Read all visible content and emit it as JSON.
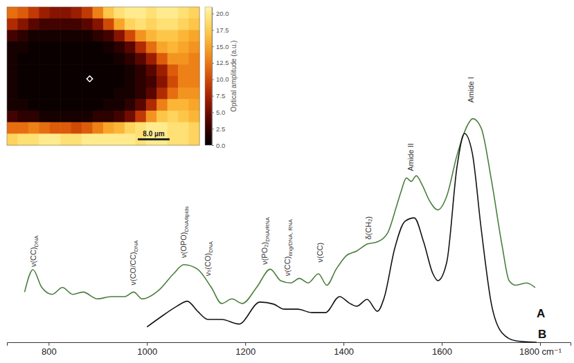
{
  "chart_data": [
    {
      "type": "line",
      "xlim": [
        715,
        1862
      ],
      "xticks": [
        800,
        1000,
        1200,
        1400,
        1600,
        {
          "value": 1800,
          "label": "1800 cm⁻¹"
        }
      ],
      "ylim": [
        0,
        100
      ],
      "grid": false,
      "tick_labels": "x",
      "series": [
        {
          "name": "A",
          "color": "#4a7d3c",
          "x": [
            751,
            768,
            786,
            807,
            828,
            849,
            870,
            899,
            927,
            955,
            973,
            990,
            1025,
            1054,
            1075,
            1103,
            1131,
            1152,
            1173,
            1194,
            1223,
            1251,
            1272,
            1293,
            1310,
            1328,
            1349,
            1366,
            1385,
            1406,
            1427,
            1448,
            1469,
            1490,
            1507,
            1517,
            1528,
            1538,
            1548,
            1560,
            1575,
            1592,
            1610,
            1631,
            1652,
            1663,
            1680,
            1701,
            1723,
            1737,
            1751,
            1772,
            1790
          ],
          "values": [
            22,
            31.8,
            24,
            21,
            24,
            21,
            22,
            19,
            20,
            20,
            22,
            19,
            23,
            30,
            34,
            32,
            24,
            17,
            19,
            17,
            24,
            32,
            27,
            26,
            28,
            26,
            30,
            25,
            32,
            38,
            40,
            43,
            44,
            48,
            59,
            66,
            72,
            70.5,
            73,
            69,
            62,
            58,
            64,
            82,
            95,
            98,
            94,
            71,
            42,
            27,
            25,
            26,
            24
          ]
        },
        {
          "name": "B",
          "color": "#111111",
          "x": [
            1000,
            1025,
            1061,
            1082,
            1103,
            1124,
            1152,
            1187,
            1230,
            1258,
            1279,
            1307,
            1335,
            1363,
            1392,
            1413,
            1427,
            1448,
            1469,
            1483,
            1504,
            1525,
            1544,
            1563,
            1582,
            1592,
            1610,
            1631,
            1646,
            1662,
            1680,
            1701,
            1723,
            1751,
            1793
          ],
          "values": [
            6.7,
            10.6,
            15.8,
            18,
            13.6,
            10,
            10,
            8,
            17.6,
            16.7,
            14.5,
            14.5,
            13,
            13,
            20,
            17,
            15.8,
            18.8,
            13.6,
            19.7,
            41,
            53,
            54.5,
            44,
            30,
            27,
            35,
            77,
            91.5,
            83,
            50,
            16.7,
            4,
            0.6,
            0
          ]
        }
      ],
      "annotations": [
        {
          "text": "ν(CC)",
          "subscript": "DNA",
          "x": 769,
          "y": 33
        },
        {
          "text": "ν(CO/CC)",
          "subscript": "DNA",
          "x": 972,
          "y": 25
        },
        {
          "text": "ν(OPO)",
          "subscript": "DNA/lipids",
          "x": 1075,
          "y": 37
        },
        {
          "text": "νₛ(CO)",
          "subscript": "DNA",
          "x": 1124,
          "y": 29
        },
        {
          "text": "ν(PO₂)",
          "subscript": "DNA/RNA",
          "x": 1240,
          "y": 34
        },
        {
          "text": "ν(CC)",
          "subscript": "ring/DNA, RNA",
          "x": 1286,
          "y": 29
        },
        {
          "text": "ν(CC)",
          "x": 1352,
          "y": 35
        },
        {
          "text": "δ(CH₂)",
          "x": 1451,
          "y": 45
        },
        {
          "text": "Amide II",
          "x": 1537,
          "y": 75
        },
        {
          "text": "Amide I",
          "x": 1659,
          "y": 105
        }
      ]
    },
    {
      "type": "heatmap",
      "scale_bar": "8.0 µm",
      "cells": [
        [
          12,
          11,
          9,
          7,
          6,
          6,
          7,
          9,
          13,
          17,
          19,
          20,
          20,
          19,
          20,
          20,
          19,
          18
        ],
        [
          8,
          6,
          4,
          3,
          3,
          3,
          3,
          4,
          6,
          10,
          15,
          18,
          19,
          18,
          19,
          19,
          18,
          17
        ],
        [
          3,
          2,
          1,
          1,
          1,
          1,
          1,
          1,
          2,
          3,
          6,
          10,
          14,
          16,
          17,
          17,
          16,
          15
        ],
        [
          1,
          1,
          0.5,
          0.5,
          0.5,
          0.5,
          0.5,
          0.5,
          0.5,
          1,
          2,
          4,
          8,
          12,
          15,
          16,
          15,
          14
        ],
        [
          1,
          0.5,
          0.5,
          0.5,
          0.5,
          0.5,
          0.5,
          0.5,
          0.5,
          0.5,
          1,
          2,
          4,
          7,
          11,
          14,
          14,
          13
        ],
        [
          1,
          0.5,
          0.5,
          0.5,
          0.5,
          0.5,
          0.5,
          0.5,
          0.5,
          0.5,
          0.5,
          1,
          2,
          4,
          7,
          11,
          13,
          13
        ],
        [
          1,
          0.5,
          0.5,
          0.5,
          0.5,
          0.5,
          0.5,
          0.5,
          0.5,
          0.5,
          0.5,
          1,
          2,
          3,
          6,
          10,
          13,
          13
        ],
        [
          1,
          0.5,
          0.5,
          0.5,
          0.5,
          0.5,
          0.5,
          0.5,
          0.5,
          0.5,
          1,
          1,
          2,
          4,
          8,
          12,
          14,
          14
        ],
        [
          1,
          1,
          0.5,
          0.5,
          0.5,
          0.5,
          0.5,
          0.5,
          0.5,
          1,
          1,
          2,
          4,
          8,
          13,
          16,
          16,
          15
        ],
        [
          3,
          2,
          2,
          1,
          1,
          1,
          1,
          1,
          2,
          2,
          3,
          5,
          9,
          14,
          17,
          18,
          17,
          16
        ],
        [
          12,
          12,
          13,
          12,
          11,
          11,
          10,
          11,
          13,
          15,
          16,
          18,
          19,
          20,
          20,
          19,
          19,
          18
        ],
        [
          18,
          19,
          19,
          20,
          20,
          19,
          19,
          20,
          20,
          20,
          20,
          20,
          19,
          20,
          20,
          19,
          19,
          18
        ]
      ],
      "colorbar": {
        "title": "Optical amplitude (a.u.)",
        "range": [
          0,
          21
        ],
        "ticks": [
          {
            "value": 0,
            "label": "0.0"
          },
          2.5,
          {
            "value": 5,
            "label": "5.0"
          },
          7.5,
          {
            "value": 10,
            "label": "10.0"
          },
          12.5,
          {
            "value": 15,
            "label": "15.0"
          },
          17.5,
          {
            "value": 20,
            "label": "20.0"
          }
        ]
      }
    }
  ]
}
